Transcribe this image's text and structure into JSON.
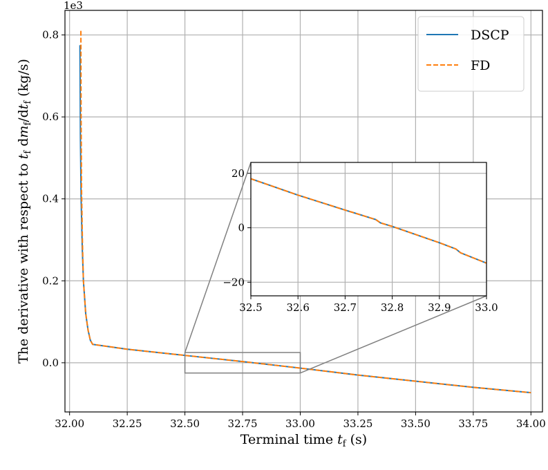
{
  "chart_data": [
    {
      "id": "main",
      "type": "line",
      "xlabel": "Terminal time t_f (s)",
      "ylabel": "The derivative with respect to t_f dm_f/dt_f (kg/s)",
      "offset_text": "1e3",
      "xlim": [
        31.98,
        34.05
      ],
      "ylim": [
        -0.12,
        0.86
      ],
      "xticks": [
        32.0,
        32.25,
        32.5,
        32.75,
        33.0,
        33.25,
        33.5,
        33.75,
        34.0
      ],
      "xtick_labels": [
        "32.00",
        "32.25",
        "32.50",
        "32.75",
        "33.00",
        "33.25",
        "33.50",
        "33.75",
        "34.00"
      ],
      "yticks": [
        0.0,
        0.2,
        0.4,
        0.6,
        0.8
      ],
      "ytick_labels": [
        "0.0",
        "0.2",
        "0.4",
        "0.6",
        "0.8"
      ],
      "grid": true,
      "legend": {
        "placement": "top-right",
        "entries": [
          "DSCP",
          "FD"
        ]
      },
      "series": [
        {
          "name": "DSCP",
          "color": "#1f77b4",
          "style": "solid",
          "x": [
            32.045,
            32.047,
            32.05,
            32.055,
            32.06,
            32.07,
            32.08,
            32.09,
            32.1,
            32.25,
            32.5,
            32.75,
            33.0,
            33.25,
            33.5,
            33.75,
            34.0
          ],
          "y": [
            0.775,
            0.55,
            0.4,
            0.28,
            0.2,
            0.12,
            0.08,
            0.055,
            0.045,
            0.033,
            0.018,
            0.003,
            -0.013,
            -0.03,
            -0.045,
            -0.06,
            -0.073
          ]
        },
        {
          "name": "FD",
          "color": "#ff7f0e",
          "style": "dashed",
          "x": [
            32.049,
            32.05,
            32.052,
            32.056,
            32.06,
            32.07,
            32.08,
            32.09,
            32.1,
            32.25,
            32.5,
            32.75,
            33.0,
            33.25,
            33.5,
            33.75,
            34.0
          ],
          "y": [
            0.81,
            0.6,
            0.42,
            0.29,
            0.2,
            0.12,
            0.08,
            0.055,
            0.045,
            0.033,
            0.018,
            0.003,
            -0.013,
            -0.03,
            -0.045,
            -0.06,
            -0.073
          ]
        }
      ],
      "zoom_region": {
        "x": [
          32.5,
          33.0
        ],
        "y": [
          -0.025,
          0.025
        ]
      }
    },
    {
      "id": "inset",
      "type": "line",
      "xlim": [
        32.5,
        33.0
      ],
      "ylim": [
        -25,
        24
      ],
      "xticks": [
        32.5,
        32.6,
        32.7,
        32.8,
        32.9,
        33.0
      ],
      "xtick_labels": [
        "32.5",
        "32.6",
        "32.7",
        "32.8",
        "32.9",
        "33.0"
      ],
      "yticks": [
        20,
        0,
        -20
      ],
      "ytick_labels": [
        "20",
        "0",
        "−20"
      ],
      "grid": true,
      "series": [
        {
          "name": "DSCP",
          "color": "#1f77b4",
          "style": "solid",
          "x": [
            32.5,
            32.6,
            32.7,
            32.765,
            32.775,
            32.8,
            32.9,
            32.935,
            32.945,
            33.0
          ],
          "y": [
            18,
            12,
            6.5,
            3,
            1.8,
            0.5,
            -5.5,
            -7.8,
            -9.2,
            -13
          ]
        },
        {
          "name": "FD",
          "color": "#ff7f0e",
          "style": "dashed",
          "x": [
            32.5,
            32.6,
            32.7,
            32.765,
            32.775,
            32.8,
            32.9,
            32.935,
            32.945,
            33.0
          ],
          "y": [
            18,
            12,
            6.5,
            3,
            1.8,
            0.5,
            -5.5,
            -7.8,
            -9.2,
            -13
          ]
        }
      ]
    }
  ]
}
